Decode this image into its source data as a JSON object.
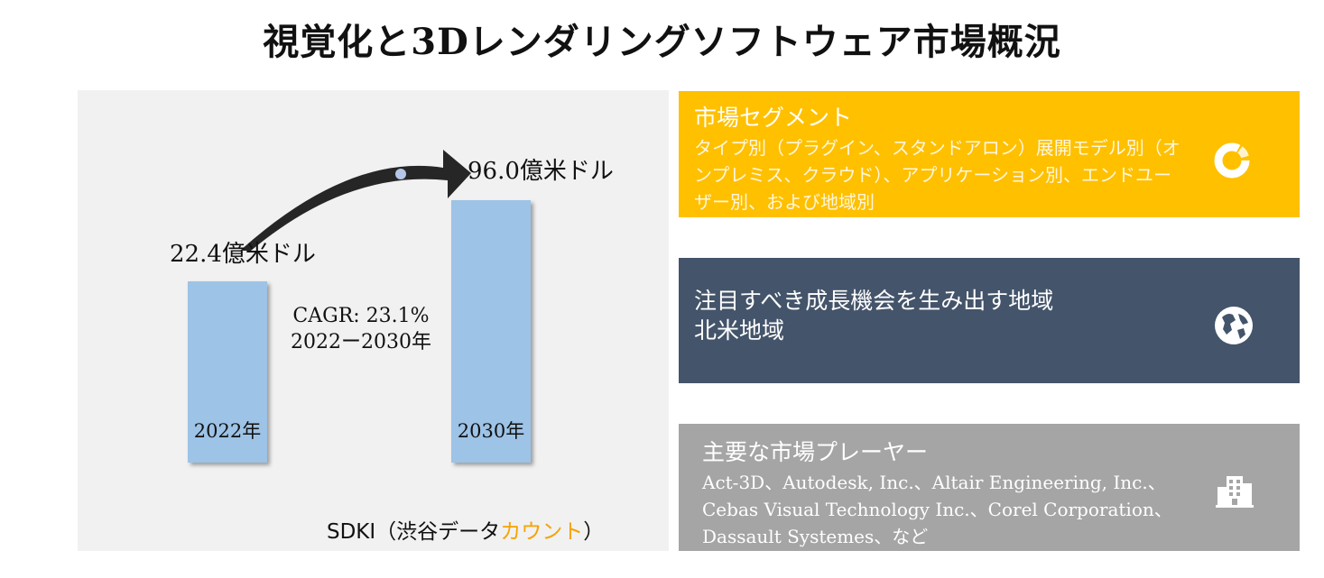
{
  "title": "視覚化と3Dレンダリングソフトウェア市場概況",
  "chart_data": {
    "type": "bar",
    "categories": [
      "2022年",
      "2030年"
    ],
    "values": [
      22.4,
      96.0
    ],
    "value_labels": [
      "22.4億米ドル",
      "96.0億米ドル"
    ],
    "unit": "億米ドル",
    "annotation": {
      "cagr": "CAGR: 23.1%",
      "period": "2022ー2030年"
    },
    "bar_color": "#9dc3e6"
  },
  "source": {
    "prefix": "SDKI（渋谷データ",
    "accent": "カウント",
    "suffix": "）"
  },
  "cards": {
    "segment": {
      "title": "市場セグメント",
      "body": "タイプ別（プラグイン、スタンドアロン）展開モデル別（オンプレミス、クラウド）、アプリケーション別、エンドユーザー別、および地域別",
      "color": "#ffc000",
      "icon": "donut-chart-icon"
    },
    "region": {
      "title": "注目すべき成長機会を生み出す地域",
      "body": "北米地域",
      "color": "#44546a",
      "icon": "globe-icon"
    },
    "players": {
      "title": "主要な市場プレーヤー",
      "body": "Act-3D、Autodesk, Inc.、Altair Engineering, Inc.、Cebas Visual Technology Inc.、Corel Corporation、Dassault Systemes、など",
      "color": "#a5a5a5",
      "icon": "building-icon"
    }
  }
}
